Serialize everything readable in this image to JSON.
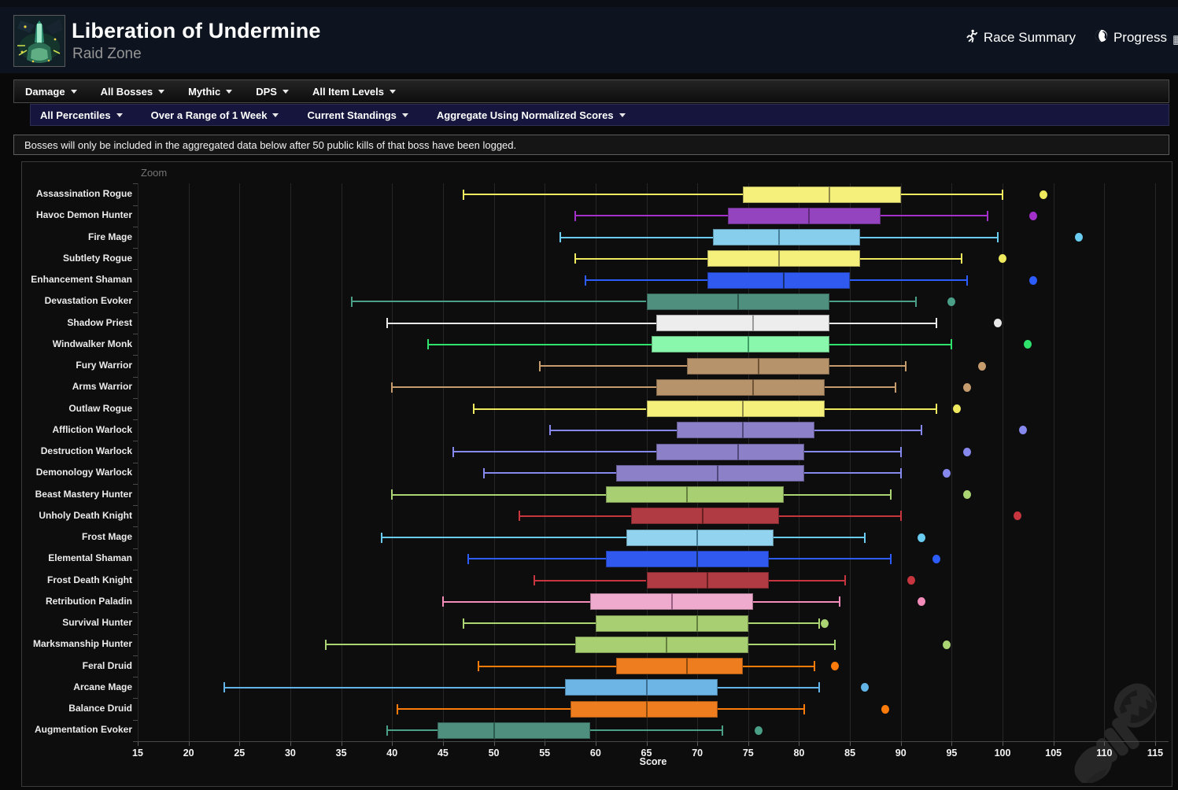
{
  "header": {
    "title": "Liberation of Undermine",
    "subtitle": "Raid Zone",
    "links": [
      {
        "label": "Race Summary",
        "icon": "runner-icon"
      },
      {
        "label": "Progress",
        "icon": "globe-icon"
      }
    ]
  },
  "nav_primary": [
    {
      "label": "Damage"
    },
    {
      "label": "All Bosses"
    },
    {
      "label": "Mythic"
    },
    {
      "label": "DPS"
    },
    {
      "label": "All Item Levels"
    }
  ],
  "nav_secondary": [
    {
      "label": "All Percentiles"
    },
    {
      "label": "Over a Range of 1 Week"
    },
    {
      "label": "Current Standings"
    },
    {
      "label": "Aggregate Using Normalized Scores"
    }
  ],
  "notice": "Bosses will only be included in the aggregated data below after 50 public kills of that boss have been logged.",
  "chart_data": {
    "type": "boxplot",
    "orientation": "horizontal",
    "zoom_label": "Zoom",
    "xlabel": "Score",
    "xlim": [
      15,
      115
    ],
    "xtick_step": 5,
    "grid": true,
    "categories": [
      "Assassination Rogue",
      "Havoc Demon Hunter",
      "Fire Mage",
      "Subtlety Rogue",
      "Enhancement Shaman",
      "Devastation Evoker",
      "Shadow Priest",
      "Windwalker Monk",
      "Fury Warrior",
      "Arms Warrior",
      "Outlaw Rogue",
      "Affliction Warlock",
      "Destruction Warlock",
      "Demonology Warlock",
      "Beast Mastery Hunter",
      "Unholy Death Knight",
      "Frost Mage",
      "Elemental Shaman",
      "Frost Death Knight",
      "Retribution Paladin",
      "Survival Hunter",
      "Marksmanship Hunter",
      "Feral Druid",
      "Arcane Mage",
      "Balance Druid",
      "Augmentation Evoker"
    ],
    "series": [
      {
        "name": "Assassination Rogue",
        "low": 47,
        "q1": 74.5,
        "median": 83,
        "q3": 90,
        "high": 100,
        "outliers": [
          104
        ],
        "line": "#efe95e",
        "fill": "#f5f07b",
        "median_color": "#8f8a47"
      },
      {
        "name": "Havoc Demon Hunter",
        "low": 58,
        "q1": 73,
        "median": 81,
        "q3": 88,
        "high": 98.5,
        "outliers": [
          103
        ],
        "line": "#a330c9",
        "fill": "#9544bf",
        "median_color": "#5f2a7a"
      },
      {
        "name": "Fire Mage",
        "low": 56.5,
        "q1": 71.5,
        "median": 78,
        "q3": 86,
        "high": 99.5,
        "outliers": [
          107.5
        ],
        "line": "#69ccf0",
        "fill": "#86ceec",
        "median_color": "#48809c"
      },
      {
        "name": "Subtlety Rogue",
        "low": 58,
        "q1": 71,
        "median": 78,
        "q3": 86,
        "high": 96,
        "outliers": [
          100
        ],
        "line": "#efe95e",
        "fill": "#f5f07b",
        "median_color": "#8f8a47"
      },
      {
        "name": "Enhancement Shaman",
        "low": 59,
        "q1": 71,
        "median": 78.5,
        "q3": 85,
        "high": 96.5,
        "outliers": [
          103
        ],
        "line": "#2d5cfc",
        "fill": "#3059f0",
        "median_color": "#16316e"
      },
      {
        "name": "Devastation Evoker",
        "low": 36,
        "q1": 65,
        "median": 74,
        "q3": 83,
        "high": 91.5,
        "outliers": [
          95
        ],
        "line": "#4a9f87",
        "fill": "#4f8f7e",
        "median_color": "#2c5a4c"
      },
      {
        "name": "Shadow Priest",
        "low": 39.5,
        "q1": 66,
        "median": 75.5,
        "q3": 83,
        "high": 93.5,
        "outliers": [
          99.5
        ],
        "line": "#e8e8e8",
        "fill": "#ededed",
        "median_color": "#9a9a9a"
      },
      {
        "name": "Windwalker Monk",
        "low": 43.5,
        "q1": 65.5,
        "median": 75,
        "q3": 83,
        "high": 95,
        "outliers": [
          102.5
        ],
        "line": "#2ee26c",
        "fill": "#8af8ac",
        "median_color": "#3f9e63"
      },
      {
        "name": "Fury Warrior",
        "low": 54.5,
        "q1": 69,
        "median": 76,
        "q3": 83,
        "high": 90.5,
        "outliers": [
          98
        ],
        "line": "#c69b6d",
        "fill": "#b6936a",
        "median_color": "#6f5536"
      },
      {
        "name": "Arms Warrior",
        "low": 40,
        "q1": 66,
        "median": 75.5,
        "q3": 82.5,
        "high": 89.5,
        "outliers": [
          96.5
        ],
        "line": "#c69b6d",
        "fill": "#b6936a",
        "median_color": "#6f5536"
      },
      {
        "name": "Outlaw Rogue",
        "low": 48,
        "q1": 65,
        "median": 74.5,
        "q3": 82.5,
        "high": 93.5,
        "outliers": [
          95.5
        ],
        "line": "#efe95e",
        "fill": "#f5f07b",
        "median_color": "#8f8a47"
      },
      {
        "name": "Affliction Warlock",
        "low": 55.5,
        "q1": 68,
        "median": 74.5,
        "q3": 81.5,
        "high": 92,
        "outliers": [
          102
        ],
        "line": "#8788ee",
        "fill": "#8c80c8",
        "median_color": "#504a7a"
      },
      {
        "name": "Destruction Warlock",
        "low": 46,
        "q1": 66,
        "median": 74,
        "q3": 80.5,
        "high": 90,
        "outliers": [
          96.5
        ],
        "line": "#8788ee",
        "fill": "#8c80c8",
        "median_color": "#504a7a"
      },
      {
        "name": "Demonology Warlock",
        "low": 49,
        "q1": 62,
        "median": 72,
        "q3": 80.5,
        "high": 90,
        "outliers": [
          94.5
        ],
        "line": "#8788ee",
        "fill": "#8c80c8",
        "median_color": "#504a7a"
      },
      {
        "name": "Beast Mastery Hunter",
        "low": 40,
        "q1": 61,
        "median": 69,
        "q3": 78.5,
        "high": 89,
        "outliers": [
          96.5
        ],
        "line": "#abd473",
        "fill": "#a8cf71",
        "median_color": "#66803f"
      },
      {
        "name": "Unholy Death Knight",
        "low": 52.5,
        "q1": 63.5,
        "median": 70.5,
        "q3": 78,
        "high": 90,
        "outliers": [
          101.5
        ],
        "line": "#c7363e",
        "fill": "#b03b42",
        "median_color": "#67201f"
      },
      {
        "name": "Frost Mage",
        "low": 39,
        "q1": 63,
        "median": 70,
        "q3": 77.5,
        "high": 86.5,
        "outliers": [
          92
        ],
        "line": "#69ccf0",
        "fill": "#92d4ef",
        "median_color": "#48809c"
      },
      {
        "name": "Elemental Shaman",
        "low": 47.5,
        "q1": 61,
        "median": 70,
        "q3": 77,
        "high": 89,
        "outliers": [
          93.5
        ],
        "line": "#2d5cfc",
        "fill": "#3059f0",
        "median_color": "#16316e"
      },
      {
        "name": "Frost Death Knight",
        "low": 54,
        "q1": 65,
        "median": 71,
        "q3": 77,
        "high": 84.5,
        "outliers": [
          91
        ],
        "line": "#c7363e",
        "fill": "#b03b42",
        "median_color": "#67201f"
      },
      {
        "name": "Retribution Paladin",
        "low": 45,
        "q1": 59.5,
        "median": 67.5,
        "q3": 75.5,
        "high": 84,
        "outliers": [
          92
        ],
        "line": "#f48cba",
        "fill": "#efabce",
        "median_color": "#986084"
      },
      {
        "name": "Survival Hunter",
        "low": 47,
        "q1": 60,
        "median": 70,
        "q3": 75,
        "high": 82,
        "outliers": [
          82.5
        ],
        "line": "#abd473",
        "fill": "#a8cf71",
        "median_color": "#66803f"
      },
      {
        "name": "Marksmanship Hunter",
        "low": 33.5,
        "q1": 58,
        "median": 67,
        "q3": 75,
        "high": 83.5,
        "outliers": [
          94.5
        ],
        "line": "#abd473",
        "fill": "#a8cf71",
        "median_color": "#66803f"
      },
      {
        "name": "Feral Druid",
        "low": 48.5,
        "q1": 62,
        "median": 69,
        "q3": 74.5,
        "high": 81.5,
        "outliers": [
          83.5
        ],
        "line": "#ff7c0a",
        "fill": "#ee7d1f",
        "median_color": "#8f4a0d"
      },
      {
        "name": "Arcane Mage",
        "low": 23.5,
        "q1": 57,
        "median": 65,
        "q3": 72,
        "high": 82,
        "outliers": [
          86.5
        ],
        "line": "#62b4e6",
        "fill": "#6cb5e5",
        "median_color": "#3d6f92"
      },
      {
        "name": "Balance Druid",
        "low": 40.5,
        "q1": 57.5,
        "median": 65,
        "q3": 72,
        "high": 80.5,
        "outliers": [
          88.5
        ],
        "line": "#ff7c0a",
        "fill": "#ee7d1f",
        "median_color": "#8f4a0d"
      },
      {
        "name": "Augmentation Evoker",
        "low": 39.5,
        "q1": 44.5,
        "median": 50,
        "q3": 59.5,
        "high": 72.5,
        "outliers": [
          76
        ],
        "line": "#4a9f87",
        "fill": "#4f8f7e",
        "median_color": "#2c5a4c"
      }
    ]
  }
}
